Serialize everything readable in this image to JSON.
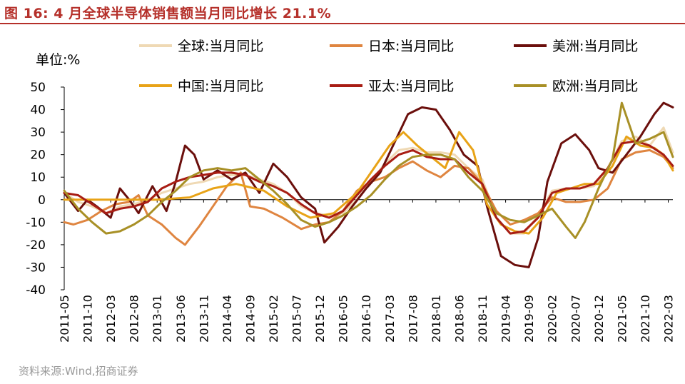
{
  "figure_label": "图 16:",
  "title": "4 月全球半导体销售额当月同比增长 21.1%",
  "source": "资料来源:Wind,招商证券",
  "chart_data": {
    "type": "line",
    "title": "4 月全球半导体销售额当月同比增长 21.1%",
    "ylabel": "单位:%",
    "xlabel": "",
    "ylim": [
      -40,
      50
    ],
    "yticks": [
      50,
      40,
      30,
      20,
      10,
      0,
      -10,
      -20,
      -30,
      -40
    ],
    "grid": false,
    "legend_position": "top",
    "x_start": "2011-05",
    "x_end": "2022-04",
    "x_ticks": [
      "2011-05",
      "2011-10",
      "2012-03",
      "2012-08",
      "2013-01",
      "2013-06",
      "2013-11",
      "2014-04",
      "2014-09",
      "2015-02",
      "2015-07",
      "2015-12",
      "2016-05",
      "2016-10",
      "2017-03",
      "2017-08",
      "2018-01",
      "2018-06",
      "2018-11",
      "2019-04",
      "2019-09",
      "2020-02",
      "2020-07",
      "2020-12",
      "2021-05",
      "2021-10",
      "2022-03"
    ],
    "series": [
      {
        "name": "全球:当月同比",
        "color": "#efd9b4",
        "points": [
          [
            "2011-05",
            3
          ],
          [
            "2011-08",
            -1
          ],
          [
            "2011-11",
            -3
          ],
          [
            "2012-02",
            -6
          ],
          [
            "2012-05",
            -3
          ],
          [
            "2012-08",
            -2
          ],
          [
            "2012-11",
            0
          ],
          [
            "2013-02",
            3
          ],
          [
            "2013-05",
            5
          ],
          [
            "2013-08",
            7
          ],
          [
            "2013-11",
            8
          ],
          [
            "2014-02",
            10
          ],
          [
            "2014-05",
            11
          ],
          [
            "2014-08",
            11
          ],
          [
            "2014-11",
            9
          ],
          [
            "2015-02",
            7
          ],
          [
            "2015-05",
            3
          ],
          [
            "2015-08",
            -3
          ],
          [
            "2015-11",
            -6
          ],
          [
            "2016-02",
            -7
          ],
          [
            "2016-05",
            -6
          ],
          [
            "2016-08",
            0
          ],
          [
            "2016-11",
            8
          ],
          [
            "2017-02",
            16
          ],
          [
            "2017-05",
            22
          ],
          [
            "2017-08",
            23
          ],
          [
            "2017-11",
            21
          ],
          [
            "2018-02",
            21
          ],
          [
            "2018-05",
            20
          ],
          [
            "2018-08",
            14
          ],
          [
            "2018-11",
            9
          ],
          [
            "2019-02",
            -8
          ],
          [
            "2019-05",
            -15
          ],
          [
            "2019-08",
            -15
          ],
          [
            "2019-11",
            -7
          ],
          [
            "2020-02",
            4
          ],
          [
            "2020-05",
            5
          ],
          [
            "2020-08",
            5
          ],
          [
            "2020-11",
            6
          ],
          [
            "2021-02",
            14
          ],
          [
            "2021-05",
            26
          ],
          [
            "2021-08",
            28
          ],
          [
            "2021-11",
            24
          ],
          [
            "2022-02",
            32
          ],
          [
            "2022-04",
            21
          ]
        ]
      },
      {
        "name": "日本:当月同比",
        "color": "#df8540",
        "points": [
          [
            "2011-05",
            -10
          ],
          [
            "2011-07",
            -11
          ],
          [
            "2011-10",
            -9
          ],
          [
            "2012-01",
            -5
          ],
          [
            "2012-04",
            -2
          ],
          [
            "2012-07",
            -1
          ],
          [
            "2012-09",
            2
          ],
          [
            "2012-11",
            -7
          ],
          [
            "2013-02",
            -11
          ],
          [
            "2013-05",
            -17
          ],
          [
            "2013-07",
            -20
          ],
          [
            "2013-10",
            -12
          ],
          [
            "2014-01",
            -3
          ],
          [
            "2014-04",
            6
          ],
          [
            "2014-07",
            12
          ],
          [
            "2014-09",
            -3
          ],
          [
            "2014-12",
            -4
          ],
          [
            "2015-04",
            -8
          ],
          [
            "2015-08",
            -13
          ],
          [
            "2015-11",
            -11
          ],
          [
            "2016-02",
            -10
          ],
          [
            "2016-05",
            -5
          ],
          [
            "2016-08",
            4
          ],
          [
            "2016-11",
            8
          ],
          [
            "2017-02",
            10
          ],
          [
            "2017-05",
            14
          ],
          [
            "2017-08",
            17
          ],
          [
            "2017-11",
            13
          ],
          [
            "2018-02",
            10
          ],
          [
            "2018-05",
            15
          ],
          [
            "2018-08",
            14
          ],
          [
            "2018-11",
            7
          ],
          [
            "2019-02",
            -5
          ],
          [
            "2019-05",
            -11
          ],
          [
            "2019-08",
            -9
          ],
          [
            "2019-11",
            -6
          ],
          [
            "2020-02",
            1
          ],
          [
            "2020-05",
            -1
          ],
          [
            "2020-08",
            -1
          ],
          [
            "2020-11",
            0
          ],
          [
            "2021-02",
            5
          ],
          [
            "2021-05",
            18
          ],
          [
            "2021-08",
            21
          ],
          [
            "2021-11",
            22
          ],
          [
            "2022-02",
            19
          ],
          [
            "2022-04",
            14
          ]
        ]
      },
      {
        "name": "美洲:当月同比",
        "color": "#6b0f0c",
        "points": [
          [
            "2011-05",
            3
          ],
          [
            "2011-08",
            -5
          ],
          [
            "2011-10",
            0
          ],
          [
            "2011-12",
            -3
          ],
          [
            "2012-03",
            -8
          ],
          [
            "2012-05",
            5
          ],
          [
            "2012-07",
            0
          ],
          [
            "2012-09",
            -6
          ],
          [
            "2012-12",
            6
          ],
          [
            "2013-03",
            -5
          ],
          [
            "2013-05",
            8
          ],
          [
            "2013-07",
            24
          ],
          [
            "2013-09",
            20
          ],
          [
            "2013-11",
            9
          ],
          [
            "2014-02",
            13
          ],
          [
            "2014-05",
            9
          ],
          [
            "2014-08",
            12
          ],
          [
            "2014-11",
            3
          ],
          [
            "2015-02",
            16
          ],
          [
            "2015-05",
            10
          ],
          [
            "2015-08",
            1
          ],
          [
            "2015-11",
            -4
          ],
          [
            "2016-01",
            -19
          ],
          [
            "2016-04",
            -12
          ],
          [
            "2016-07",
            -3
          ],
          [
            "2016-10",
            5
          ],
          [
            "2017-01",
            12
          ],
          [
            "2017-04",
            25
          ],
          [
            "2017-07",
            38
          ],
          [
            "2017-10",
            41
          ],
          [
            "2018-01",
            40
          ],
          [
            "2018-04",
            31
          ],
          [
            "2018-07",
            20
          ],
          [
            "2018-10",
            15
          ],
          [
            "2018-12",
            -3
          ],
          [
            "2019-03",
            -25
          ],
          [
            "2019-06",
            -29
          ],
          [
            "2019-09",
            -30
          ],
          [
            "2019-11",
            -17
          ],
          [
            "2020-01",
            8
          ],
          [
            "2020-04",
            25
          ],
          [
            "2020-07",
            29
          ],
          [
            "2020-10",
            22
          ],
          [
            "2020-12",
            14
          ],
          [
            "2021-03",
            12
          ],
          [
            "2021-06",
            20
          ],
          [
            "2021-09",
            28
          ],
          [
            "2021-12",
            38
          ],
          [
            "2022-02",
            43
          ],
          [
            "2022-04",
            41
          ]
        ]
      },
      {
        "name": "中国:当月同比",
        "color": "#e8a317",
        "points": [
          [
            "2011-05",
            0
          ],
          [
            "2012-06",
            0
          ],
          [
            "2013-01",
            0
          ],
          [
            "2013-08",
            1
          ],
          [
            "2014-01",
            5
          ],
          [
            "2014-06",
            7
          ],
          [
            "2014-12",
            4
          ],
          [
            "2015-05",
            -3
          ],
          [
            "2015-10",
            -8
          ],
          [
            "2016-03",
            -6
          ],
          [
            "2016-08",
            3
          ],
          [
            "2016-12",
            15
          ],
          [
            "2017-03",
            24
          ],
          [
            "2017-06",
            30
          ],
          [
            "2017-09",
            24
          ],
          [
            "2017-12",
            19
          ],
          [
            "2018-03",
            14
          ],
          [
            "2018-06",
            30
          ],
          [
            "2018-09",
            22
          ],
          [
            "2018-12",
            -2
          ],
          [
            "2019-03",
            -11
          ],
          [
            "2019-06",
            -14
          ],
          [
            "2019-09",
            -15
          ],
          [
            "2019-12",
            -8
          ],
          [
            "2020-03",
            3
          ],
          [
            "2020-06",
            5
          ],
          [
            "2020-09",
            7
          ],
          [
            "2020-12",
            7
          ],
          [
            "2021-03",
            15
          ],
          [
            "2021-06",
            28
          ],
          [
            "2021-09",
            24
          ],
          [
            "2021-12",
            23
          ],
          [
            "2022-02",
            20
          ],
          [
            "2022-04",
            13
          ]
        ]
      },
      {
        "name": "亚太:当月同比",
        "color": "#a81d14",
        "points": [
          [
            "2011-05",
            3
          ],
          [
            "2011-08",
            2
          ],
          [
            "2011-11",
            -2
          ],
          [
            "2012-02",
            -6
          ],
          [
            "2012-05",
            -4
          ],
          [
            "2012-08",
            -3
          ],
          [
            "2012-11",
            -1
          ],
          [
            "2013-02",
            5
          ],
          [
            "2013-05",
            8
          ],
          [
            "2013-08",
            10
          ],
          [
            "2013-11",
            11
          ],
          [
            "2014-02",
            12
          ],
          [
            "2014-05",
            12
          ],
          [
            "2014-08",
            11
          ],
          [
            "2014-11",
            8
          ],
          [
            "2015-02",
            6
          ],
          [
            "2015-05",
            3
          ],
          [
            "2015-08",
            -2
          ],
          [
            "2015-11",
            -6
          ],
          [
            "2016-02",
            -8
          ],
          [
            "2016-05",
            -5
          ],
          [
            "2016-08",
            2
          ],
          [
            "2016-11",
            9
          ],
          [
            "2017-02",
            15
          ],
          [
            "2017-05",
            20
          ],
          [
            "2017-08",
            22
          ],
          [
            "2017-11",
            19
          ],
          [
            "2018-02",
            18
          ],
          [
            "2018-05",
            18
          ],
          [
            "2018-08",
            12
          ],
          [
            "2018-11",
            7
          ],
          [
            "2019-02",
            -8
          ],
          [
            "2019-05",
            -15
          ],
          [
            "2019-08",
            -14
          ],
          [
            "2019-11",
            -8
          ],
          [
            "2020-02",
            3
          ],
          [
            "2020-05",
            5
          ],
          [
            "2020-08",
            5
          ],
          [
            "2020-11",
            7
          ],
          [
            "2021-02",
            14
          ],
          [
            "2021-05",
            25
          ],
          [
            "2021-08",
            26
          ],
          [
            "2021-11",
            24
          ],
          [
            "2022-02",
            20
          ],
          [
            "2022-04",
            15
          ]
        ]
      },
      {
        "name": "欧洲:当月同比",
        "color": "#a89026",
        "points": [
          [
            "2011-05",
            4
          ],
          [
            "2011-08",
            -4
          ],
          [
            "2011-11",
            -10
          ],
          [
            "2012-02",
            -15
          ],
          [
            "2012-05",
            -14
          ],
          [
            "2012-08",
            -11
          ],
          [
            "2012-11",
            -7
          ],
          [
            "2013-02",
            -1
          ],
          [
            "2013-05",
            4
          ],
          [
            "2013-08",
            10
          ],
          [
            "2013-11",
            13
          ],
          [
            "2014-02",
            14
          ],
          [
            "2014-05",
            13
          ],
          [
            "2014-08",
            14
          ],
          [
            "2014-11",
            9
          ],
          [
            "2015-02",
            4
          ],
          [
            "2015-05",
            -2
          ],
          [
            "2015-08",
            -9
          ],
          [
            "2015-11",
            -12
          ],
          [
            "2016-02",
            -10
          ],
          [
            "2016-05",
            -7
          ],
          [
            "2016-08",
            -3
          ],
          [
            "2016-11",
            2
          ],
          [
            "2017-02",
            9
          ],
          [
            "2017-05",
            15
          ],
          [
            "2017-08",
            19
          ],
          [
            "2017-11",
            20
          ],
          [
            "2018-02",
            20
          ],
          [
            "2018-05",
            18
          ],
          [
            "2018-08",
            10
          ],
          [
            "2018-11",
            4
          ],
          [
            "2019-02",
            -6
          ],
          [
            "2019-05",
            -9
          ],
          [
            "2019-08",
            -10
          ],
          [
            "2019-11",
            -7
          ],
          [
            "2020-02",
            -4
          ],
          [
            "2020-05",
            -12
          ],
          [
            "2020-07",
            -17
          ],
          [
            "2020-09",
            -10
          ],
          [
            "2020-12",
            5
          ],
          [
            "2021-03",
            18
          ],
          [
            "2021-05",
            43
          ],
          [
            "2021-08",
            25
          ],
          [
            "2021-11",
            27
          ],
          [
            "2022-02",
            30
          ],
          [
            "2022-04",
            19
          ]
        ]
      }
    ]
  }
}
